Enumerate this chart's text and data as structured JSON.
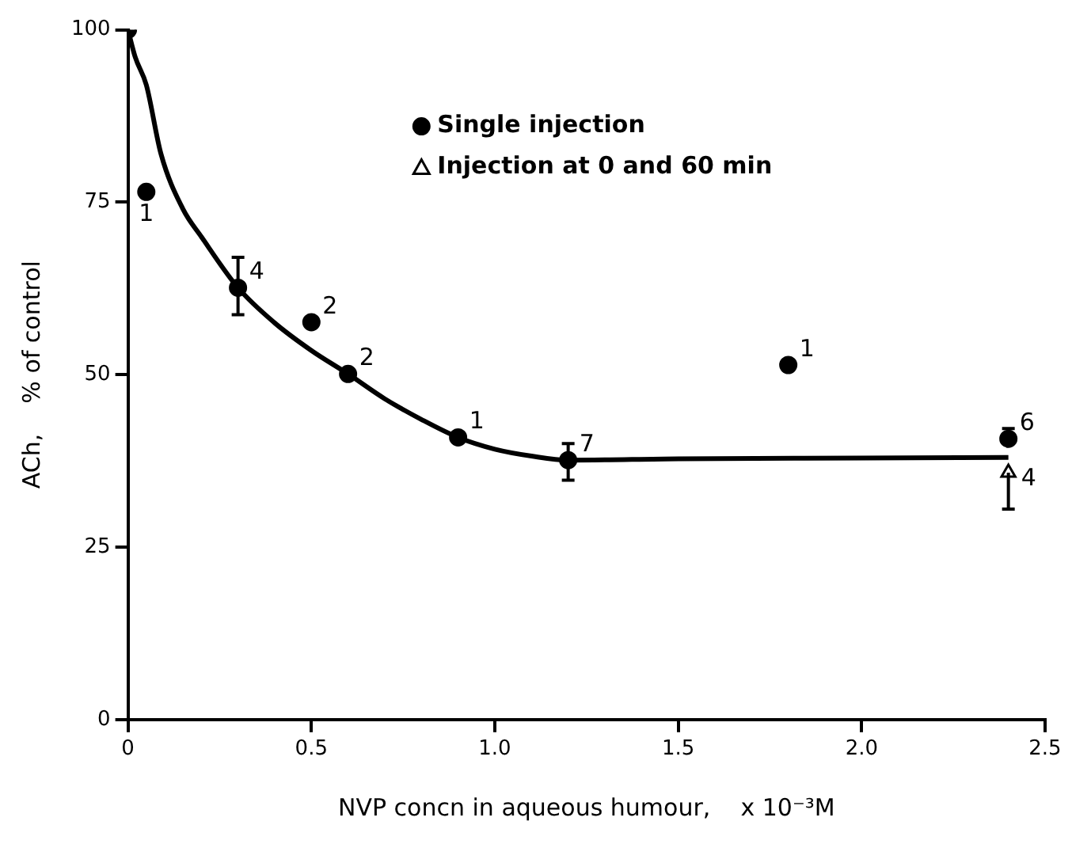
{
  "chart_data": {
    "type": "scatter",
    "xlabel": "NVP concn in aqueous humour,    x 10⁻³M",
    "ylabel": "ACh,    % of control",
    "xlim": [
      0,
      2.5
    ],
    "ylim": [
      0,
      100
    ],
    "xticks": [
      0,
      0.5,
      {
        "value": 1,
        "label": "1.0"
      },
      1.5,
      {
        "value": 2,
        "label": "2.0"
      },
      2.5
    ],
    "yticks": [
      0,
      25,
      50,
      75,
      100
    ],
    "grid": false,
    "legend": "top right",
    "series": [
      {
        "name": "Single injection",
        "type": "scatter",
        "marker": "circle",
        "color": "#000000",
        "x": [
          0,
          0.05,
          0.3,
          0.5,
          0.6,
          0.9,
          1.2,
          1.8,
          2.4
        ],
        "values": [
          100,
          76.5,
          62.6,
          57.6,
          50.1,
          40.9,
          37.6,
          51.4,
          40.7
        ],
        "errors": [
          null,
          null,
          [
            58.7,
            67
          ],
          null,
          null,
          null,
          [
            34.7,
            40
          ],
          null,
          [
            40.7,
            42.2
          ]
        ]
      },
      {
        "name": "Injection at 0 and 60 min",
        "type": "scatter",
        "marker": "triangle",
        "color": "#000000",
        "x": [
          2.4
        ],
        "values": [
          35.8
        ],
        "errors": [
          [
            30.5,
            35.8
          ]
        ]
      },
      {
        "type": "line",
        "marker": "none",
        "line_style": "solid",
        "color": "#000000",
        "x": [
          0,
          0.02,
          0.05,
          0.09,
          0.15,
          0.2,
          0.3,
          0.4,
          0.5,
          0.6,
          0.7,
          0.8,
          0.9,
          1.0,
          1.1,
          1.2,
          1.5,
          2.0,
          2.4
        ],
        "values": [
          100,
          96,
          92,
          82,
          74,
          70,
          62.6,
          57.5,
          53.5,
          50.1,
          46.5,
          43.5,
          40.9,
          39.2,
          38.2,
          37.6,
          37.8,
          37.9,
          38
        ]
      }
    ],
    "annotations": [
      {
        "text": "1",
        "x": 0.05,
        "y": 76.5
      },
      {
        "text": "4",
        "x": 0.3,
        "y": 62.6
      },
      {
        "text": "2",
        "x": 0.5,
        "y": 57.6
      },
      {
        "text": "2",
        "x": 0.6,
        "y": 50.1
      },
      {
        "text": "1",
        "x": 0.9,
        "y": 40.9
      },
      {
        "text": "7",
        "x": 1.2,
        "y": 37.6
      },
      {
        "text": "1",
        "x": 1.8,
        "y": 51.4
      },
      {
        "text": "6",
        "x": 2.4,
        "y": 40.7
      },
      {
        "text": "4",
        "x": 2.4,
        "y": 35.8
      }
    ]
  }
}
